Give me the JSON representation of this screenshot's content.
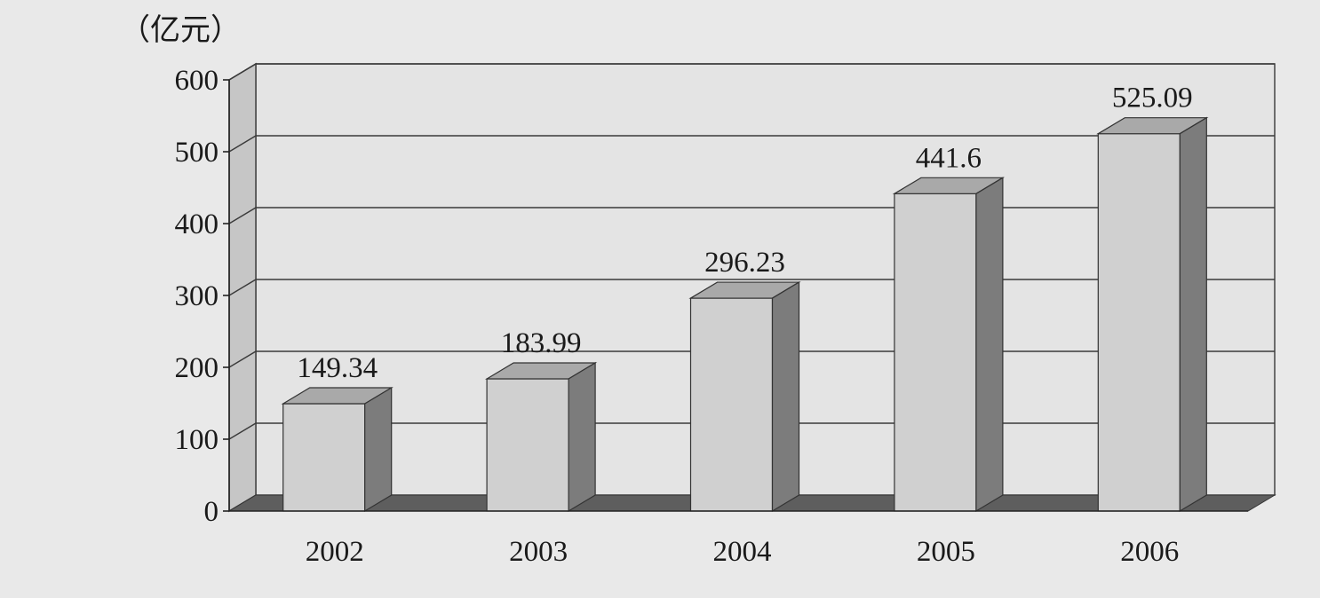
{
  "chart_data": {
    "type": "bar",
    "style": "3d-column",
    "unit_label": "（亿元）",
    "categories": [
      "2002",
      "2003",
      "2004",
      "2005",
      "2006"
    ],
    "values": [
      149.34,
      183.99,
      296.23,
      441.6,
      525.09
    ],
    "data_labels": [
      "149.34",
      "183.99",
      "296.23",
      "441.6",
      "525.09"
    ],
    "y_ticks": [
      "0",
      "100",
      "200",
      "300",
      "400",
      "500",
      "600"
    ],
    "ylim": [
      0,
      600
    ],
    "grid": true,
    "legend": false,
    "colors": {
      "background": "#e9e9e9",
      "bar_front": "#d0d0d0",
      "bar_top": "#a9a9a9",
      "bar_side": "#7c7c7c",
      "back_wall": "#e4e4e4",
      "side_wall": "#c6c6c6",
      "floor": "#5e5e5e",
      "gridline": "#3a3a3a"
    }
  }
}
